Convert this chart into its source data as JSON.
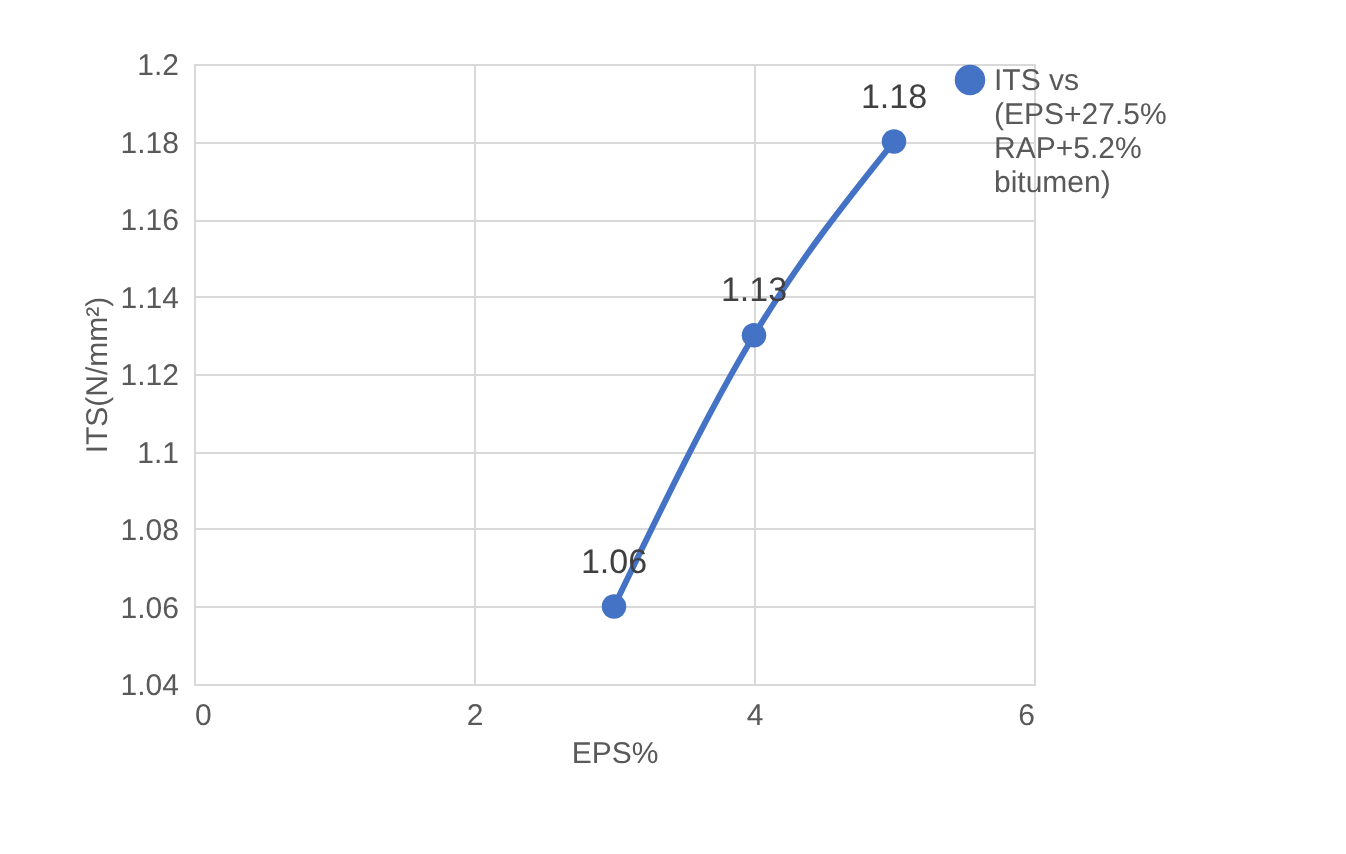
{
  "chart_data": {
    "type": "line",
    "xlabel": "EPS%",
    "ylabel": "ITS(N/mm²)",
    "x": [
      3,
      4,
      5
    ],
    "series": [
      {
        "name": "ITS vs (EPS+27.5% RAP+5.2% bitumen)",
        "color": "#4472c4",
        "values": [
          1.06,
          1.13,
          1.18
        ]
      }
    ],
    "xlim": [
      0,
      6
    ],
    "xticks": [
      0,
      2,
      4,
      6
    ],
    "ylim": [
      1.04,
      1.2
    ],
    "yticks": [
      1.04,
      1.06,
      1.08,
      1.1,
      1.12,
      1.14,
      1.16,
      1.18,
      1.2
    ],
    "grid": true,
    "legend": "right",
    "marker": "circle",
    "line_style": "solid",
    "data_labels": true
  }
}
